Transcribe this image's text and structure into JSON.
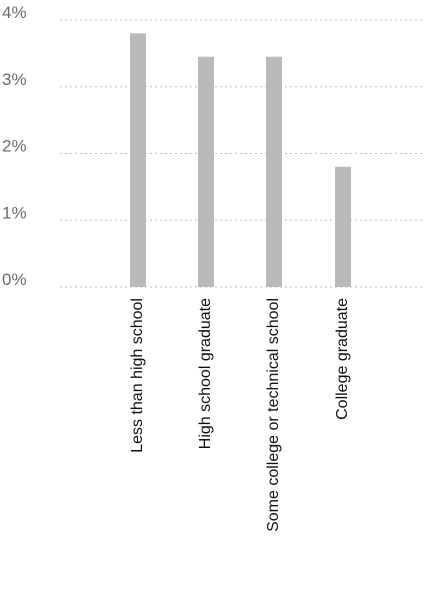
{
  "chart_data": {
    "type": "bar",
    "title": "",
    "xlabel": "",
    "ylabel": "",
    "categories": [
      "Less than high school",
      "High school graduate",
      "Some college or technical school",
      "College graduate"
    ],
    "values": [
      3.8,
      3.45,
      3.45,
      1.8
    ],
    "ylim": [
      0,
      4
    ],
    "yticks": [
      0,
      1,
      2,
      3,
      4
    ],
    "ytick_labels": [
      "0%",
      "1%",
      "2%",
      "3%",
      "4%"
    ],
    "grid": true,
    "legend": "none",
    "colors": {
      "bar": "#b8babb",
      "grid": "#bdbdbd",
      "tick_text": "#6b6b6b",
      "category_text": "#111111"
    }
  }
}
